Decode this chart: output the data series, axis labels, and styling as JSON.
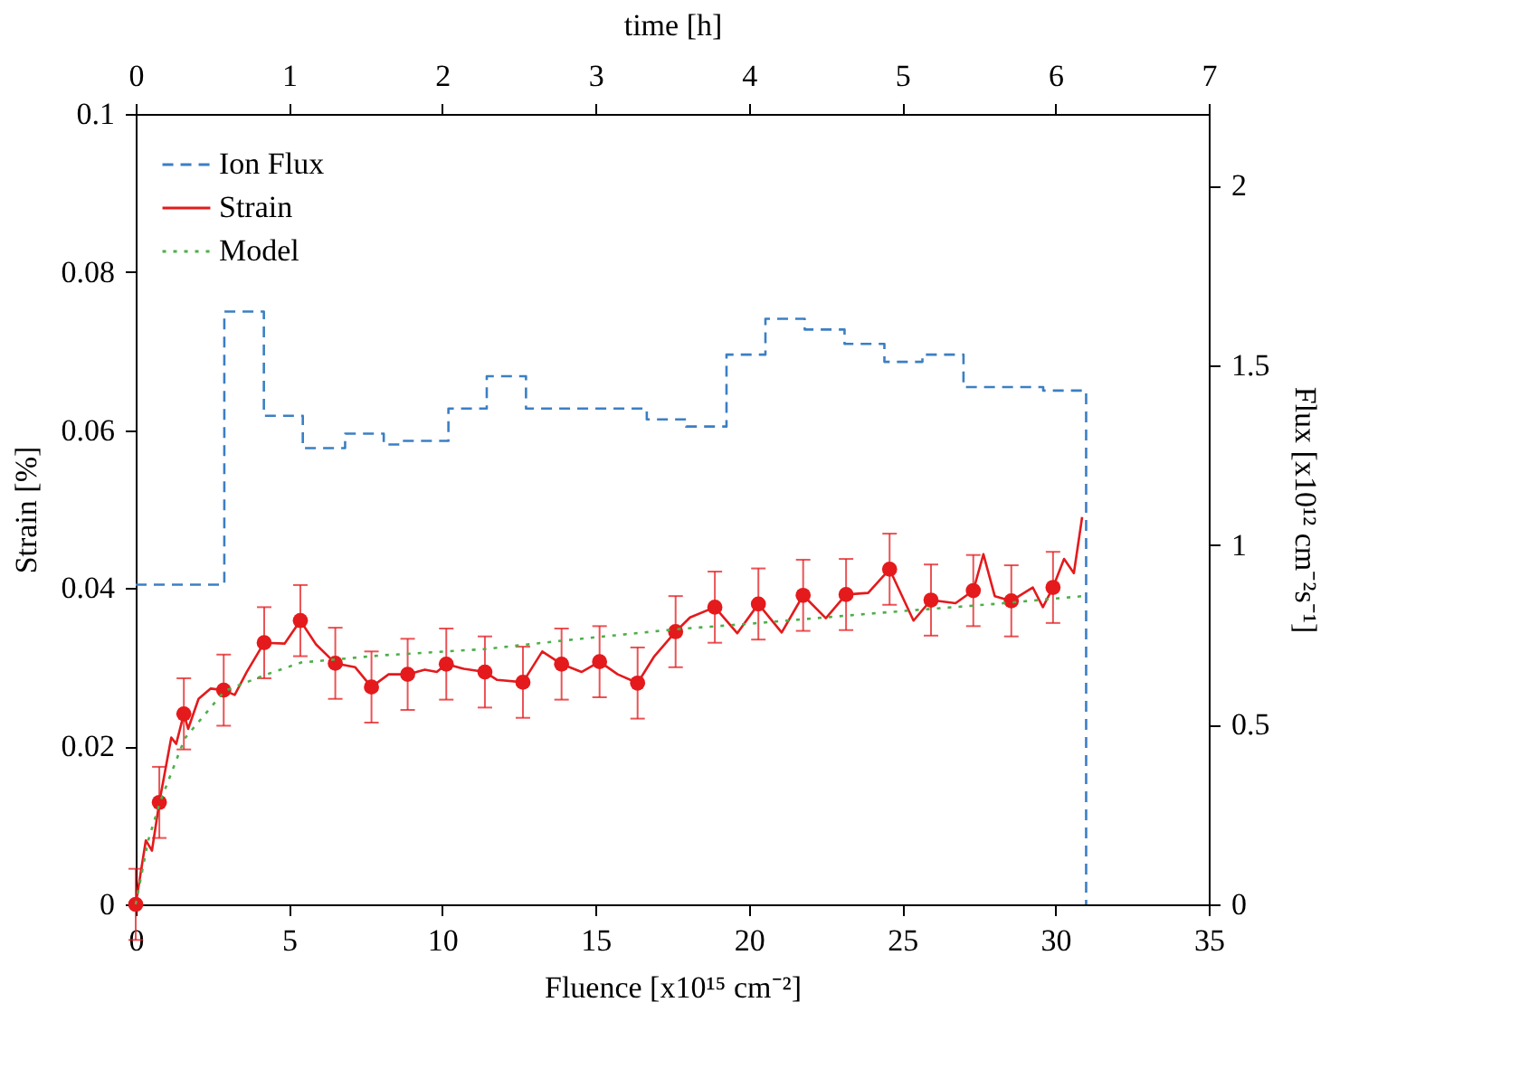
{
  "chart_data": {
    "type": "line",
    "xlabel": "Fluence [x10¹⁵ cm⁻²]",
    "ylabel": "Strain [%]",
    "y2label": "Flux [x10¹² cm⁻²s⁻¹]",
    "x2label": "time [h]",
    "xlim": [
      0,
      35
    ],
    "xticks": [
      0,
      5,
      10,
      15,
      20,
      25,
      30,
      35
    ],
    "ylim": [
      0,
      0.1
    ],
    "yticks": [
      0,
      0.02,
      0.04,
      0.06,
      0.08,
      0.1
    ],
    "y2lim": [
      0,
      2.2
    ],
    "y2ticks": [
      0,
      0.5,
      1,
      1.5,
      2
    ],
    "x2lim": [
      0,
      7
    ],
    "x2ticks": [
      0,
      1,
      2,
      3,
      4,
      5,
      6,
      7
    ],
    "grid": false,
    "legend": "top left",
    "series": [
      {
        "name": "Ion Flux",
        "type": "step",
        "axis": "y2",
        "color": "#3b7fc4",
        "line_style": "dashed",
        "x": [
          0,
          2.89,
          4.18,
          5.45,
          6.83,
          8.09,
          8.6,
          10.2,
          11.45,
          12.73,
          16.67,
          17.95,
          19.27,
          20.54,
          21.82,
          23.12,
          24.42,
          25.66,
          27.0,
          29.6,
          31.0
        ],
        "values": [
          0.89,
          1.65,
          1.36,
          1.27,
          1.31,
          1.28,
          1.29,
          1.38,
          1.47,
          1.38,
          1.35,
          1.33,
          1.53,
          1.63,
          1.6,
          1.56,
          1.51,
          1.53,
          1.44,
          1.43,
          0
        ]
      },
      {
        "name": "Strain",
        "type": "scatter",
        "marker": "circle",
        "color": "#e41a1c",
        "x": [
          0,
          0.77,
          1.57,
          2.87,
          4.19,
          5.37,
          6.51,
          7.69,
          8.87,
          10.13,
          11.39,
          12.63,
          13.89,
          15.13,
          16.37,
          17.61,
          18.89,
          20.31,
          21.77,
          23.17,
          24.59,
          25.94,
          27.32,
          28.56,
          29.92
        ],
        "values": [
          0,
          0.0129,
          0.0241,
          0.0271,
          0.0331,
          0.0359,
          0.0305,
          0.0275,
          0.0291,
          0.0304,
          0.0294,
          0.0281,
          0.0304,
          0.0307,
          0.028,
          0.0345,
          0.0376,
          0.038,
          0.0391,
          0.0392,
          0.0424,
          0.0385,
          0.0397,
          0.0384,
          0.0401
        ],
        "errors": [
          0.0045,
          0.0045,
          0.0045,
          0.0045,
          0.0045,
          0.0045,
          0.0045,
          0.0045,
          0.0045,
          0.0045,
          0.0045,
          0.0045,
          0.0045,
          0.0045,
          0.0045,
          0.0045,
          0.0045,
          0.0045,
          0.0045,
          0.0045,
          0.0045,
          0.0045,
          0.0045,
          0.0045,
          0.0045
        ]
      },
      {
        "color": "#e41a1c",
        "line_style": "solid",
        "x": [
          0,
          0.33,
          0.53,
          0.77,
          1.16,
          1.32,
          1.57,
          1.71,
          2.05,
          2.44,
          2.87,
          3.23,
          3.62,
          4.19,
          4.86,
          5.37,
          5.88,
          6.51,
          7.16,
          7.69,
          8.25,
          8.87,
          9.43,
          9.82,
          10.13,
          10.7,
          11.39,
          11.79,
          12.63,
          13.26,
          13.89,
          14.54,
          15.13,
          15.72,
          16.37,
          16.9,
          17.61,
          18.08,
          18.89,
          19.62,
          20.31,
          21.07,
          21.77,
          22.51,
          23.17,
          23.89,
          24.59,
          25.37,
          25.94,
          26.74,
          27.32,
          27.65,
          28.02,
          28.56,
          29.26,
          29.59,
          29.92,
          30.28,
          30.6,
          30.87
        ],
        "values": [
          0,
          0.0081,
          0.0068,
          0.0129,
          0.0211,
          0.0203,
          0.0241,
          0.0222,
          0.026,
          0.0273,
          0.0271,
          0.0265,
          0.0294,
          0.0331,
          0.033,
          0.0359,
          0.0329,
          0.0305,
          0.03,
          0.0275,
          0.0291,
          0.0291,
          0.0297,
          0.0294,
          0.0304,
          0.0298,
          0.0294,
          0.0284,
          0.0281,
          0.032,
          0.0304,
          0.0294,
          0.0307,
          0.0291,
          0.028,
          0.0313,
          0.0345,
          0.0363,
          0.0376,
          0.0343,
          0.038,
          0.0344,
          0.0391,
          0.0362,
          0.0392,
          0.0394,
          0.0424,
          0.0359,
          0.0385,
          0.0381,
          0.0397,
          0.0443,
          0.039,
          0.0384,
          0.0401,
          0.0376,
          0.0401,
          0.0437,
          0.0419,
          0.049
        ]
      },
      {
        "name": "Model",
        "color": "#4daf4a",
        "line_style": "dotted",
        "x": [
          0,
          0.4,
          0.8,
          1.6,
          2.9,
          4.2,
          5.4,
          8,
          11.4,
          14,
          17.6,
          20,
          24,
          28,
          30.9
        ],
        "values": [
          0,
          0.008,
          0.013,
          0.021,
          0.027,
          0.029,
          0.0306,
          0.0315,
          0.0323,
          0.0334,
          0.0348,
          0.0355,
          0.0368,
          0.038,
          0.039
        ]
      }
    ]
  }
}
